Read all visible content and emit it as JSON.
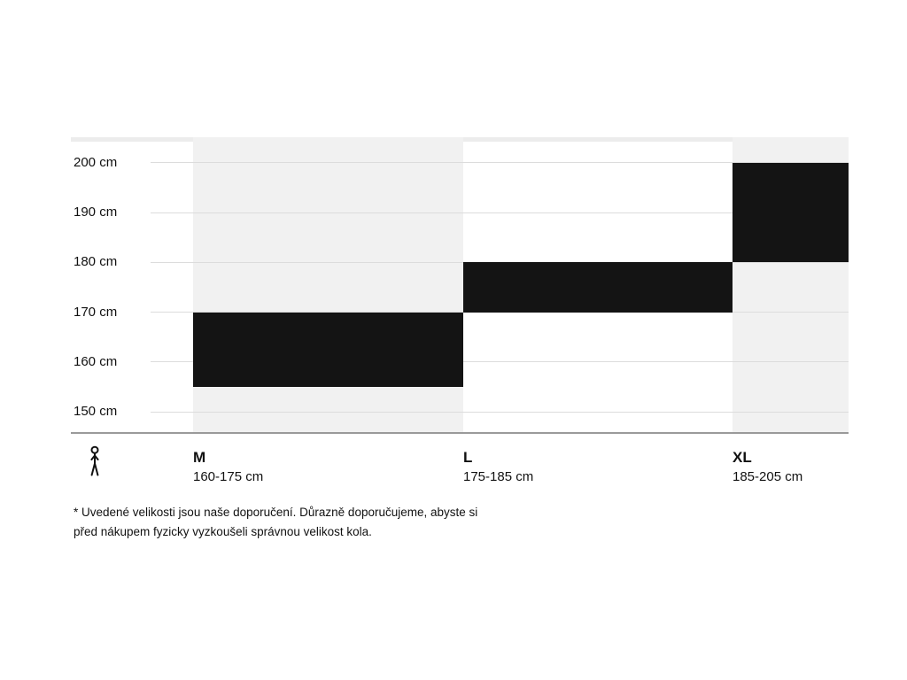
{
  "chart_data": {
    "type": "bar",
    "subtype": "vertical-range-columns",
    "unit": "cm",
    "ylim": [
      150,
      205
    ],
    "grid": true,
    "y_ticks": [
      {
        "value": 200,
        "label": "200 cm"
      },
      {
        "value": 190,
        "label": "190 cm"
      },
      {
        "value": 180,
        "label": "180 cm"
      },
      {
        "value": 170,
        "label": "170 cm"
      },
      {
        "value": 160,
        "label": "160 cm"
      },
      {
        "value": 150,
        "label": "150 cm"
      }
    ],
    "sizes": [
      {
        "label": "M",
        "range_label": "160-175 cm",
        "min_height_cm": 160,
        "max_height_cm": 175,
        "column_shaded": true
      },
      {
        "label": "L",
        "range_label": "175-185 cm",
        "min_height_cm": 175,
        "max_height_cm": 185,
        "column_shaded": false
      },
      {
        "label": "XL",
        "range_label": "185-205 cm",
        "min_height_cm": 185,
        "max_height_cm": 205,
        "column_shaded": true
      }
    ],
    "bar_color": "#141414",
    "column_band_color": "#f1f1f1",
    "grid_line_color": "#dcdcdc",
    "axis_line_color": "#9a9a9a",
    "text_color": "#111111"
  },
  "icons": {
    "person": "person-height-icon"
  },
  "footnote": {
    "lines": [
      "* Uvedené velikosti jsou naše doporučení. Důrazně doporučujeme, abyste si",
      "před nákupem fyzicky vyzkoušeli správnou velikost kola."
    ]
  }
}
